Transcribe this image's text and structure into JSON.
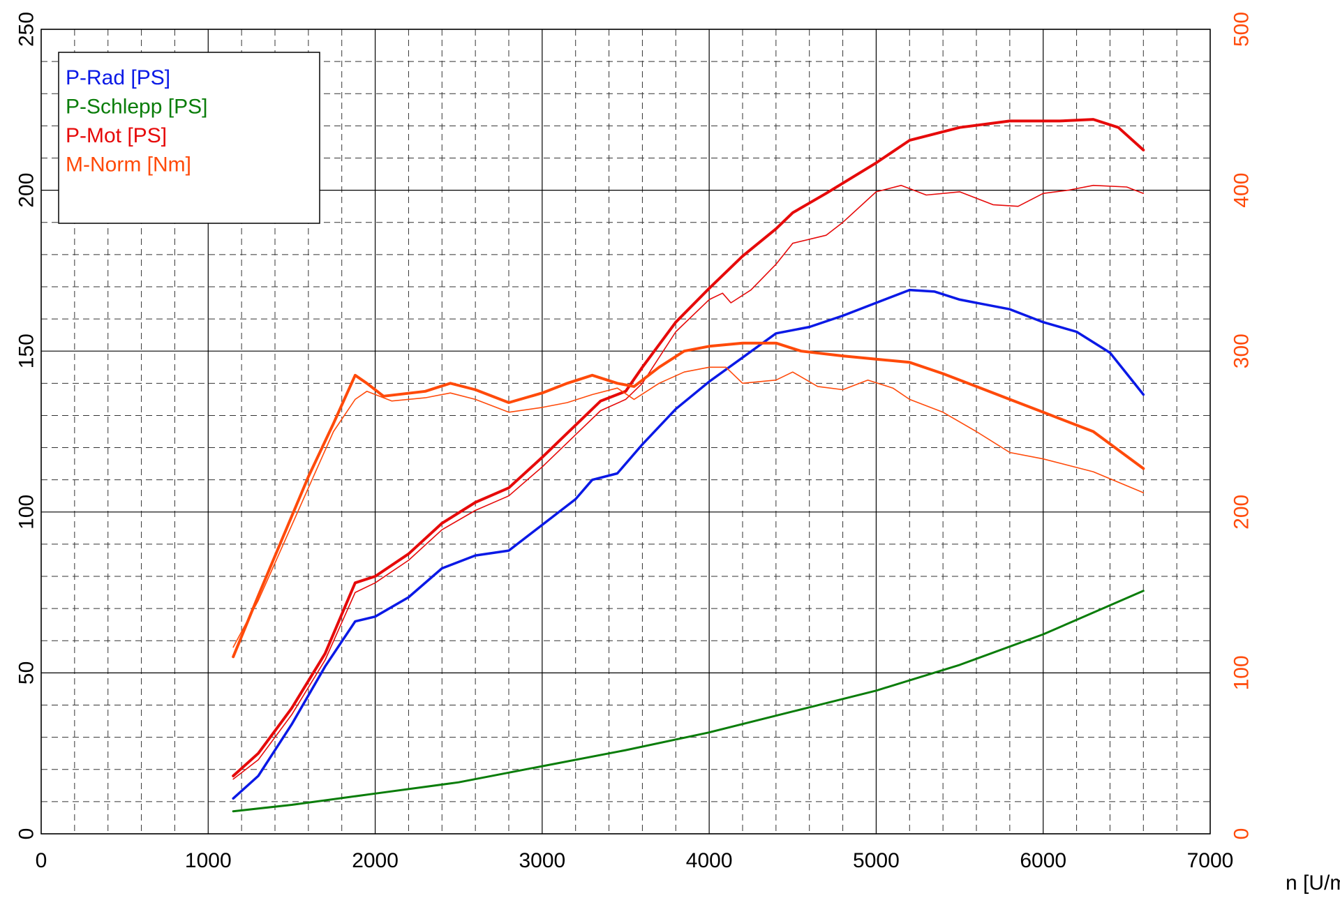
{
  "chart_data": {
    "type": "line",
    "xlabel": "n [U/min]",
    "xlim": [
      0,
      7000
    ],
    "x_ticks": [
      "0",
      "1000",
      "2000",
      "3000",
      "4000",
      "5000",
      "6000",
      "7000"
    ],
    "ylim": [
      0,
      250
    ],
    "y_ticks": [
      "0",
      "50",
      "100",
      "150",
      "200",
      "250"
    ],
    "y2lim": [
      0,
      500
    ],
    "y2_ticks": [
      "0",
      "100",
      "200",
      "300",
      "400",
      "500"
    ],
    "grid": true,
    "legend_position": "top-left",
    "legend": [
      {
        "label": "P-Rad [PS]",
        "color": "#0a19e6"
      },
      {
        "label": "P-Schlepp [PS]",
        "color": "#0a7d0a"
      },
      {
        "label": "P-Mot [PS]",
        "color": "#e60a0a"
      },
      {
        "label": "M-Norm [Nm]",
        "color": "#ff4a0a"
      }
    ],
    "series": [
      {
        "name": "P-Rad [PS]",
        "axis": "left",
        "color": "#0a19e6",
        "width": 3.5,
        "points": [
          [
            1150,
            11
          ],
          [
            1300,
            18
          ],
          [
            1500,
            34
          ],
          [
            1700,
            52
          ],
          [
            1880,
            66
          ],
          [
            2000,
            67.5
          ],
          [
            2200,
            73.5
          ],
          [
            2400,
            82.5
          ],
          [
            2600,
            86.5
          ],
          [
            2800,
            88
          ],
          [
            3000,
            96
          ],
          [
            3200,
            104
          ],
          [
            3300,
            110
          ],
          [
            3450,
            112
          ],
          [
            3600,
            121
          ],
          [
            3800,
            132
          ],
          [
            4000,
            140.5
          ],
          [
            4200,
            148
          ],
          [
            4400,
            155.5
          ],
          [
            4600,
            157.5
          ],
          [
            4800,
            161
          ],
          [
            5000,
            165
          ],
          [
            5200,
            169
          ],
          [
            5350,
            168.5
          ],
          [
            5500,
            166
          ],
          [
            5800,
            163
          ],
          [
            6000,
            159
          ],
          [
            6200,
            156
          ],
          [
            6400,
            149.5
          ],
          [
            6500,
            143
          ],
          [
            6600,
            136.5
          ]
        ]
      },
      {
        "name": "P-Schlepp [PS]",
        "axis": "left",
        "color": "#0a7d0a",
        "width": 3,
        "points": [
          [
            1150,
            7
          ],
          [
            1500,
            9
          ],
          [
            2000,
            12.5
          ],
          [
            2500,
            16
          ],
          [
            3000,
            21
          ],
          [
            3500,
            26
          ],
          [
            4000,
            31.5
          ],
          [
            4500,
            38
          ],
          [
            5000,
            44.5
          ],
          [
            5500,
            52.5
          ],
          [
            6000,
            62
          ],
          [
            6600,
            75.5
          ]
        ]
      },
      {
        "axis": "left",
        "color": "#e60a0a",
        "width": 4,
        "points": [
          [
            1150,
            18
          ],
          [
            1300,
            25
          ],
          [
            1500,
            39
          ],
          [
            1700,
            56
          ],
          [
            1880,
            78
          ],
          [
            2000,
            80
          ],
          [
            2200,
            87
          ],
          [
            2400,
            96.5
          ],
          [
            2600,
            103
          ],
          [
            2800,
            107.5
          ],
          [
            3000,
            117
          ],
          [
            3200,
            127
          ],
          [
            3350,
            134.5
          ],
          [
            3500,
            137.5
          ],
          [
            3600,
            145
          ],
          [
            3800,
            159
          ],
          [
            4000,
            169.5
          ],
          [
            4200,
            179.5
          ],
          [
            4400,
            188
          ],
          [
            4500,
            193
          ],
          [
            4700,
            199
          ],
          [
            5000,
            208.5
          ],
          [
            5200,
            215.5
          ],
          [
            5500,
            219.5
          ],
          [
            5800,
            221.5
          ],
          [
            6100,
            221.5
          ],
          [
            6300,
            222
          ],
          [
            6450,
            219.5
          ],
          [
            6600,
            212.5
          ]
        ]
      },
      {
        "axis": "left",
        "color": "#e60a0a",
        "width": 1.6,
        "points": [
          [
            1150,
            17
          ],
          [
            1300,
            23
          ],
          [
            1500,
            37
          ],
          [
            1700,
            54
          ],
          [
            1880,
            75
          ],
          [
            2000,
            78
          ],
          [
            2200,
            85
          ],
          [
            2400,
            94.5
          ],
          [
            2600,
            100.5
          ],
          [
            2800,
            105
          ],
          [
            3000,
            114
          ],
          [
            3200,
            124
          ],
          [
            3350,
            131.5
          ],
          [
            3500,
            135
          ],
          [
            3600,
            140
          ],
          [
            3800,
            156
          ],
          [
            4000,
            166
          ],
          [
            4080,
            168
          ],
          [
            4130,
            165
          ],
          [
            4250,
            169
          ],
          [
            4400,
            177
          ],
          [
            4500,
            183.5
          ],
          [
            4700,
            186
          ],
          [
            4800,
            190
          ],
          [
            5000,
            199.5
          ],
          [
            5150,
            201.5
          ],
          [
            5300,
            198.5
          ],
          [
            5500,
            199.5
          ],
          [
            5700,
            195.5
          ],
          [
            5850,
            195
          ],
          [
            6000,
            199
          ],
          [
            6150,
            200
          ],
          [
            6300,
            201.5
          ],
          [
            6500,
            201
          ],
          [
            6600,
            199
          ]
        ]
      },
      {
        "name": "M-Norm [Nm]",
        "axis": "right",
        "color": "#ff4a0a",
        "width": 4,
        "points": [
          [
            1150,
            110
          ],
          [
            1300,
            148
          ],
          [
            1450,
            185
          ],
          [
            1600,
            222
          ],
          [
            1750,
            255
          ],
          [
            1880,
            285
          ],
          [
            1950,
            280
          ],
          [
            2050,
            272
          ],
          [
            2300,
            275
          ],
          [
            2450,
            280
          ],
          [
            2600,
            276
          ],
          [
            2800,
            268
          ],
          [
            3000,
            274
          ],
          [
            3150,
            280
          ],
          [
            3300,
            285
          ],
          [
            3450,
            280
          ],
          [
            3550,
            278
          ],
          [
            3700,
            290
          ],
          [
            3850,
            300
          ],
          [
            4000,
            303
          ],
          [
            4200,
            305
          ],
          [
            4400,
            305
          ],
          [
            4550,
            300
          ],
          [
            4800,
            297
          ],
          [
            5000,
            295
          ],
          [
            5200,
            293
          ],
          [
            5400,
            286
          ],
          [
            5600,
            278
          ],
          [
            5800,
            270
          ],
          [
            6000,
            262
          ],
          [
            6300,
            250
          ],
          [
            6600,
            227
          ]
        ]
      },
      {
        "axis": "right",
        "color": "#ff4a0a",
        "width": 1.6,
        "points": [
          [
            1150,
            116
          ],
          [
            1300,
            145
          ],
          [
            1450,
            180
          ],
          [
            1600,
            215
          ],
          [
            1750,
            250
          ],
          [
            1880,
            270
          ],
          [
            1950,
            275
          ],
          [
            2100,
            269
          ],
          [
            2300,
            271
          ],
          [
            2450,
            274
          ],
          [
            2600,
            270
          ],
          [
            2800,
            262
          ],
          [
            3000,
            265
          ],
          [
            3150,
            268
          ],
          [
            3300,
            273
          ],
          [
            3450,
            277
          ],
          [
            3550,
            270
          ],
          [
            3700,
            280
          ],
          [
            3850,
            287
          ],
          [
            4000,
            290
          ],
          [
            4100,
            290
          ],
          [
            4200,
            280
          ],
          [
            4400,
            282
          ],
          [
            4500,
            287
          ],
          [
            4650,
            278
          ],
          [
            4800,
            276
          ],
          [
            4950,
            282
          ],
          [
            5100,
            277
          ],
          [
            5200,
            270
          ],
          [
            5400,
            262
          ],
          [
            5600,
            250
          ],
          [
            5800,
            237
          ],
          [
            6000,
            233
          ],
          [
            6300,
            225
          ],
          [
            6600,
            212
          ]
        ]
      }
    ]
  }
}
